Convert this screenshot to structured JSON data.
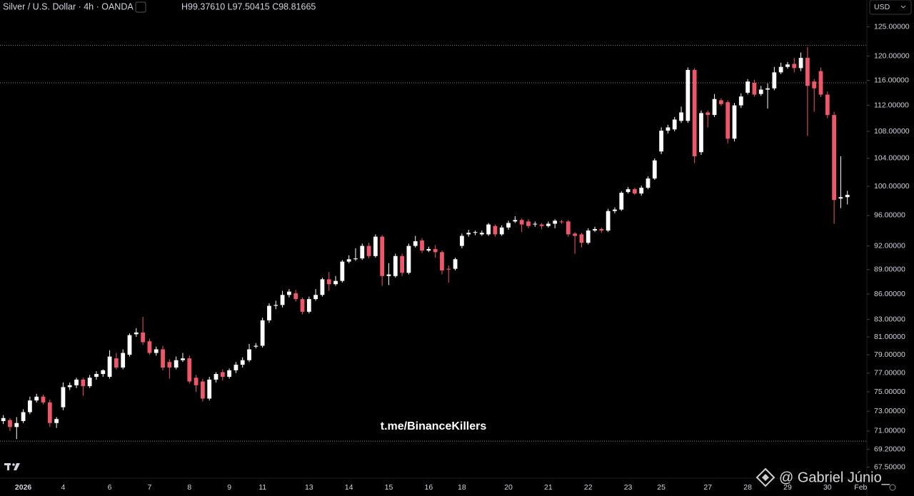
{
  "header": {
    "symbol": "Silver / U.S. Dollar · 4h · OANDA",
    "ohlc": "H99.37610 L97.50415 C98.81665",
    "currency": "USD"
  },
  "watermark": "t.me/BinanceKillers",
  "credit": "@ Gabriel Júnio_",
  "chart_data": {
    "type": "candlestick",
    "log_scale": true,
    "up_color": "#ffffff",
    "down_color": "#f0566a",
    "level_color": "#8a8a8a",
    "ylim": [
      66.6,
      129.8
    ],
    "yticks": [
      {
        "value": 125,
        "label": "125.00000"
      },
      {
        "value": 120,
        "label": "120.00000"
      },
      {
        "value": 116,
        "label": "116.00000"
      },
      {
        "value": 112,
        "label": "112.00000"
      },
      {
        "value": 108,
        "label": "108.00000"
      },
      {
        "value": 104,
        "label": "104.00000"
      },
      {
        "value": 100,
        "label": "100.00000"
      },
      {
        "value": 96,
        "label": "96.00000"
      },
      {
        "value": 92,
        "label": "92.00000"
      },
      {
        "value": 89,
        "label": "89.00000"
      },
      {
        "value": 86,
        "label": "86.00000"
      },
      {
        "value": 83,
        "label": "83.00000"
      },
      {
        "value": 81,
        "label": "81.00000"
      },
      {
        "value": 79,
        "label": "79.00000"
      },
      {
        "value": 77,
        "label": "77.00000"
      },
      {
        "value": 75,
        "label": "75.00000"
      },
      {
        "value": 73,
        "label": "73.00000"
      },
      {
        "value": 71,
        "label": "71.00000"
      },
      {
        "value": 69.2,
        "label": "69.20000"
      },
      {
        "value": 67.5,
        "label": "67.50000"
      }
    ],
    "levels": [
      121.8,
      115.6,
      70.0
    ],
    "categories": [
      null,
      null,
      null,
      "2026",
      null,
      null,
      null,
      null,
      null,
      "4",
      null,
      null,
      null,
      null,
      null,
      null,
      "6",
      null,
      null,
      null,
      null,
      null,
      "7",
      null,
      null,
      null,
      null,
      null,
      "8",
      null,
      null,
      null,
      null,
      null,
      "9",
      null,
      null,
      null,
      null,
      "11",
      null,
      null,
      null,
      null,
      null,
      null,
      "13",
      null,
      null,
      null,
      null,
      null,
      "14",
      null,
      null,
      null,
      null,
      null,
      "15",
      null,
      null,
      null,
      null,
      null,
      "16",
      null,
      null,
      null,
      null,
      "18",
      null,
      null,
      null,
      null,
      null,
      null,
      "20",
      null,
      null,
      null,
      null,
      null,
      "21",
      null,
      null,
      null,
      null,
      null,
      "22",
      null,
      null,
      null,
      null,
      null,
      "23",
      null,
      null,
      null,
      null,
      "25",
      null,
      null,
      null,
      null,
      null,
      null,
      "27",
      null,
      null,
      null,
      null,
      null,
      "28",
      null,
      null,
      null,
      null,
      null,
      "29",
      null,
      null,
      null,
      null,
      null,
      "30",
      null,
      null,
      null,
      null,
      "Feb"
    ],
    "open": [
      72.0,
      72.1,
      71.4,
      72.0,
      72.9,
      74.1,
      74.5,
      73.9,
      71.8,
      73.4,
      75.5,
      75.7,
      76.3,
      75.6,
      76.6,
      76.9,
      76.6,
      78.6,
      77.6,
      79.0,
      81.3,
      81.5,
      80.5,
      79.2,
      79.6,
      78.2,
      77.6,
      78.4,
      78.6,
      76.5,
      76.1,
      74.3,
      76.3,
      77.1,
      76.6,
      77.3,
      77.9,
      78.4,
      79.9,
      80.0,
      82.9,
      84.6,
      84.7,
      85.9,
      86.1,
      85.4,
      83.9,
      85.4,
      85.9,
      87.8,
      87.2,
      87.6,
      90.0,
      90.3,
      90.4,
      92.0,
      90.7,
      93.2,
      88.2,
      88.2,
      90.7,
      88.6,
      92.0,
      92.7,
      91.4,
      91.6,
      91.2,
      89.1,
      89.1,
      92.0,
      93.5,
      93.7,
      93.5,
      93.5,
      94.6,
      93.5,
      94.4,
      95.2,
      95.4,
      95.2,
      94.8,
      94.8,
      94.6,
      94.9,
      95.2,
      95.2,
      93.6,
      93.5,
      92.4,
      94.0,
      94.2,
      94.0,
      96.6,
      96.8,
      99.2,
      99.6,
      99.0,
      99.8,
      101.1,
      105.0,
      108.1,
      108.3,
      109.6,
      109.6,
      117.7,
      104.9,
      110.9,
      110.5,
      112.8,
      112.5,
      106.9,
      112.0,
      114.0,
      115.6,
      113.8,
      114.5,
      114.7,
      117.3,
      118.2,
      118.7,
      118.0,
      119.7,
      115.8,
      117.5,
      113.7,
      110.5,
      98.3,
      98.5,
      null,
      null
    ],
    "high": [
      72.6,
      72.3,
      72.4,
      73.2,
      74.5,
      74.8,
      74.7,
      74.2,
      72.4,
      76.0,
      76.0,
      76.5,
      76.5,
      76.8,
      77.2,
      77.4,
      79.5,
      79.2,
      79.6,
      81.4,
      82.0,
      83.3,
      80.8,
      79.9,
      80.0,
      78.5,
      78.8,
      79.2,
      78.9,
      76.8,
      76.4,
      76.6,
      77.1,
      77.4,
      77.5,
      78.2,
      78.7,
      80.2,
      80.3,
      83.2,
      84.9,
      85.2,
      86.4,
      86.6,
      86.5,
      85.6,
      85.7,
      86.6,
      88.0,
      88.7,
      88.2,
      90.2,
      90.8,
      91.7,
      92.3,
      92.4,
      93.5,
      93.4,
      89.8,
      91.0,
      91.0,
      92.3,
      93.3,
      93.0,
      91.9,
      92.1,
      91.4,
      89.5,
      90.5,
      93.6,
      94.1,
      94.0,
      94.0,
      95.0,
      94.8,
      94.7,
      95.3,
      95.9,
      95.6,
      95.5,
      95.2,
      95.0,
      95.2,
      95.5,
      95.4,
      95.4,
      93.8,
      93.7,
      94.3,
      94.5,
      94.4,
      96.9,
      97.1,
      99.3,
      99.9,
      99.8,
      100.1,
      101.4,
      104.0,
      108.6,
      109.0,
      110.2,
      111.8,
      118.1,
      118.0,
      111.2,
      111.2,
      113.8,
      113.1,
      112.8,
      112.4,
      113.9,
      116.2,
      116.1,
      115.1,
      115.5,
      118.2,
      118.9,
      119.0,
      119.7,
      120.6,
      121.5,
      116.2,
      118.1,
      114.2,
      111.0,
      104.3,
      99.3761,
      null,
      null
    ],
    "low": [
      71.7,
      71.0,
      70.2,
      71.8,
      72.7,
      73.9,
      73.7,
      71.4,
      71.3,
      73.1,
      75.2,
      75.4,
      74.6,
      75.4,
      76.3,
      76.6,
      76.4,
      77.4,
      77.4,
      78.8,
      81.0,
      80.1,
      79.0,
      78.9,
      77.3,
      76.4,
      77.4,
      78.2,
      75.9,
      75.0,
      74.0,
      74.1,
      76.0,
      76.2,
      76.4,
      77.0,
      77.6,
      78.2,
      79.7,
      79.8,
      82.6,
      84.2,
      84.4,
      85.6,
      85.1,
      83.6,
      83.7,
      85.2,
      85.7,
      86.4,
      87.0,
      87.4,
      89.8,
      90.1,
      90.2,
      90.4,
      90.5,
      87.0,
      87.1,
      88.0,
      88.2,
      88.4,
      91.8,
      91.1,
      91.2,
      90.5,
      88.4,
      87.4,
      88.9,
      91.7,
      93.2,
      93.4,
      93.3,
      93.3,
      93.2,
      93.3,
      94.1,
      95.0,
      93.8,
      94.3,
      94.5,
      94.2,
      94.4,
      94.3,
      94.9,
      93.2,
      91.0,
      91.8,
      92.2,
      93.8,
      93.7,
      93.8,
      96.3,
      96.6,
      99.0,
      98.8,
      98.7,
      99.6,
      100.9,
      104.6,
      107.7,
      108.0,
      109.3,
      109.3,
      103.3,
      104.5,
      108.6,
      110.2,
      111.9,
      106.2,
      106.5,
      111.6,
      113.7,
      113.4,
      113.5,
      111.5,
      114.4,
      117.0,
      117.9,
      117.3,
      117.5,
      107.3,
      111.0,
      113.3,
      110.0,
      94.9,
      97.0,
      97.50415,
      null,
      null
    ],
    "close": [
      72.3,
      71.4,
      71.8,
      72.9,
      74.1,
      74.5,
      73.9,
      71.8,
      72.2,
      75.5,
      75.7,
      76.3,
      75.6,
      76.5,
      76.9,
      77.3,
      78.8,
      77.6,
      79.2,
      81.2,
      81.5,
      80.4,
      79.2,
      79.6,
      77.6,
      77.6,
      78.4,
      78.6,
      76.1,
      75.7,
      74.3,
      76.3,
      76.9,
      76.6,
      77.3,
      77.9,
      78.4,
      79.6,
      80.0,
      82.9,
      84.6,
      84.7,
      85.9,
      86.3,
      85.4,
      83.9,
      85.4,
      85.9,
      87.8,
      87.2,
      87.6,
      90.0,
      90.3,
      90.4,
      92.0,
      90.7,
      93.2,
      88.2,
      88.4,
      90.7,
      88.6,
      92.0,
      92.6,
      91.4,
      91.6,
      91.2,
      88.9,
      89.0,
      90.3,
      93.3,
      93.7,
      93.8,
      93.7,
      94.8,
      93.5,
      94.4,
      95.0,
      95.4,
      94.8,
      94.6,
      94.9,
      94.6,
      94.9,
      95.3,
      95.1,
      93.5,
      93.3,
      92.4,
      94.0,
      94.2,
      94.0,
      96.6,
      96.8,
      99.1,
      99.6,
      99.0,
      99.8,
      101.1,
      103.7,
      108.1,
      108.6,
      109.8,
      110.9,
      117.7,
      104.3,
      110.8,
      110.5,
      113.0,
      112.2,
      106.9,
      112.0,
      113.4,
      115.8,
      113.7,
      114.5,
      114.7,
      117.3,
      118.2,
      118.6,
      118.0,
      119.7,
      115.1,
      114.7,
      113.7,
      110.5,
      98.1,
      98.5,
      98.81665,
      null,
      null
    ]
  }
}
